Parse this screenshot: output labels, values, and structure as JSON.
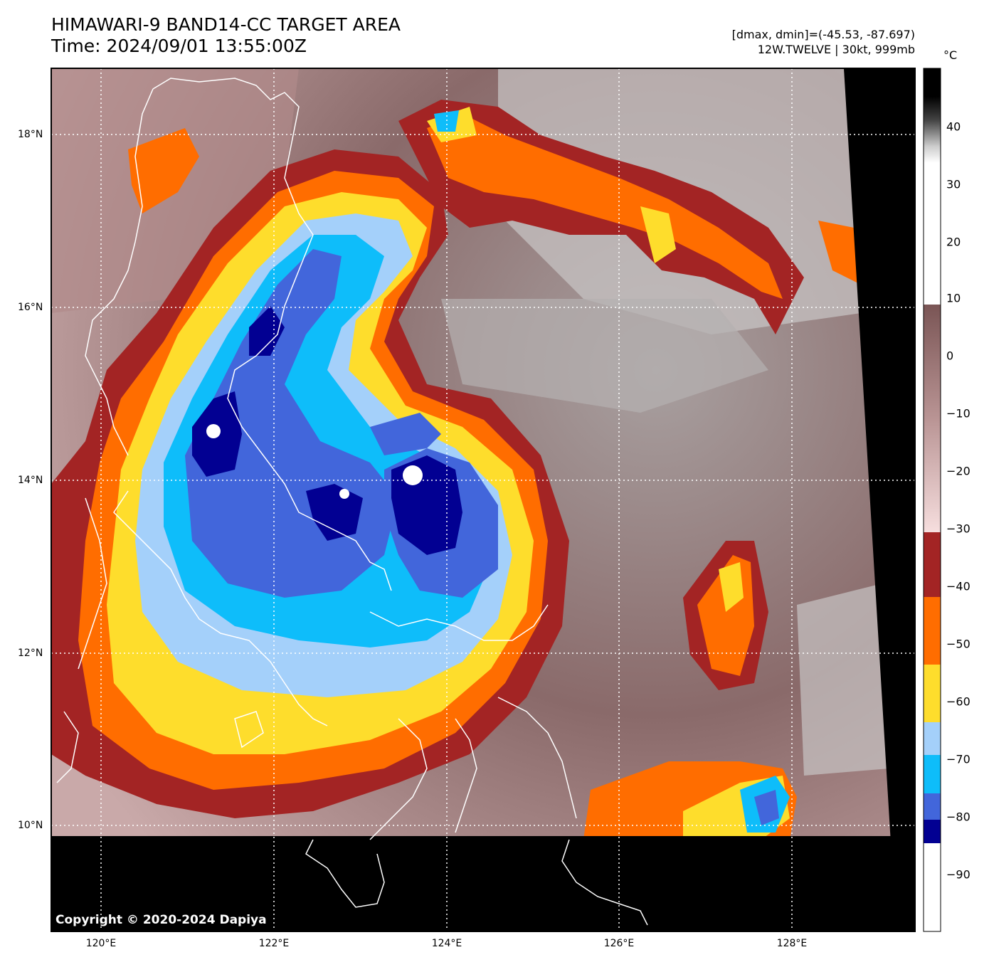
{
  "header": {
    "title_line1": "HIMAWARI-9 BAND14-CC TARGET AREA",
    "title_line2": "Time: 2024/09/01 13:55:00Z",
    "meta_line1": "[dmax, dmin]=(-45.53, -87.697)",
    "meta_line2": "12W.TWELVE | 30kt, 999mb"
  },
  "map": {
    "copyright": "Copyright © 2020-2024 Dapiya",
    "lat_labels": [
      "18°N",
      "16°N",
      "14°N",
      "12°N",
      "10°N"
    ],
    "lon_labels": [
      "120°E",
      "122°E",
      "124°E",
      "126°E",
      "128°E"
    ]
  },
  "colorbar": {
    "unit": "°C",
    "ticks": [
      "40",
      "30",
      "20",
      "10",
      "0",
      "−10",
      "−20",
      "−30",
      "−40",
      "−50",
      "−60",
      "−70",
      "−80",
      "−90"
    ],
    "colors": {
      "black": "#000000",
      "white": "#ffffff",
      "gray_light": "#f0f0f0",
      "brownish": "#7e5a5a",
      "pink": "#f3d3d3",
      "dark_red": "#a32424",
      "orange": "#ff6d00",
      "yellow": "#fedd2c",
      "light_blue": "#a4d0fa",
      "cyan_blue": "#0ebdfa",
      "royal_blue": "#4266db",
      "navy": "#020092"
    }
  }
}
